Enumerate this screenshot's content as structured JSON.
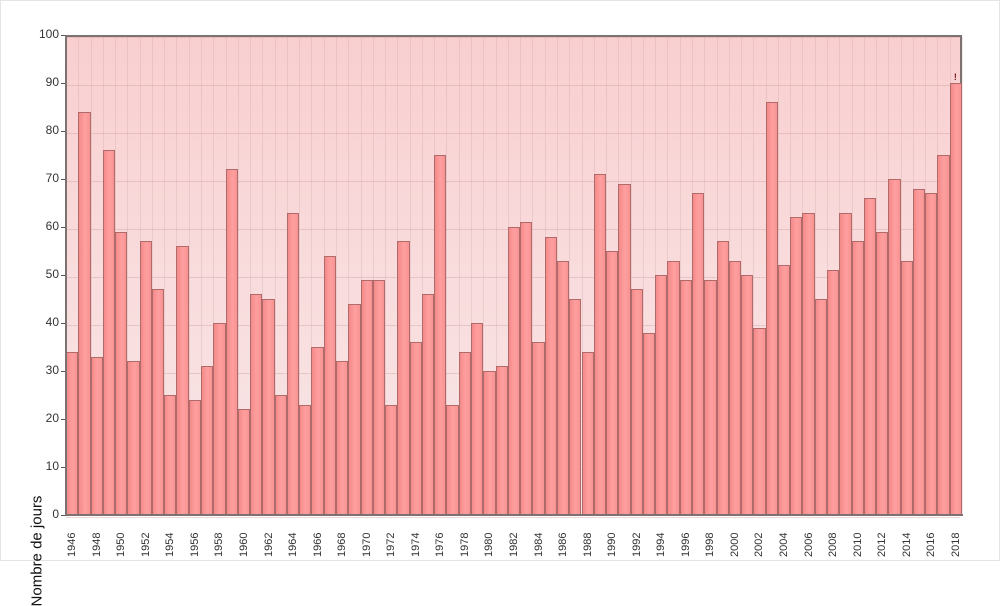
{
  "chart_data": {
    "type": "bar",
    "title": "",
    "xlabel": "",
    "ylabel": "Nombre de jours",
    "ylim": [
      0,
      100
    ],
    "yticks": [
      0,
      10,
      20,
      30,
      40,
      50,
      60,
      70,
      80,
      90,
      100
    ],
    "grid": true,
    "legend": null,
    "categories": [
      1946,
      1947,
      1948,
      1949,
      1950,
      1951,
      1952,
      1953,
      1954,
      1955,
      1956,
      1957,
      1958,
      1959,
      1960,
      1961,
      1962,
      1963,
      1964,
      1965,
      1966,
      1967,
      1968,
      1969,
      1970,
      1971,
      1972,
      1973,
      1974,
      1975,
      1976,
      1977,
      1978,
      1979,
      1980,
      1981,
      1982,
      1983,
      1984,
      1985,
      1986,
      1987,
      1988,
      1989,
      1990,
      1991,
      1992,
      1993,
      1994,
      1995,
      1996,
      1997,
      1998,
      1999,
      2000,
      2001,
      2002,
      2003,
      2004,
      2005,
      2006,
      2007,
      2008,
      2009,
      2010,
      2011,
      2012,
      2013,
      2014,
      2015,
      2016,
      2017,
      2018
    ],
    "xtick_labels": [
      "1946",
      "1948",
      "1950",
      "1952",
      "1954",
      "1956",
      "1958",
      "1960",
      "1962",
      "1964",
      "1966",
      "1968",
      "1970",
      "1972",
      "1974",
      "1976",
      "1978",
      "1980",
      "1982",
      "1984",
      "1986",
      "1988",
      "1990",
      "1992",
      "1994",
      "1996",
      "1998",
      "2000",
      "2002",
      "2004",
      "2006",
      "2008",
      "2010",
      "2012",
      "2014",
      "2016",
      "2018"
    ],
    "values": [
      34,
      84,
      33,
      76,
      59,
      32,
      57,
      47,
      25,
      56,
      24,
      31,
      40,
      72,
      22,
      46,
      45,
      25,
      63,
      23,
      35,
      54,
      32,
      44,
      49,
      49,
      23,
      57,
      36,
      46,
      75,
      23,
      34,
      40,
      30,
      31,
      60,
      61,
      36,
      58,
      53,
      45,
      34,
      71,
      55,
      69,
      47,
      38,
      50,
      53,
      49,
      67,
      49,
      57,
      53,
      50,
      39,
      86,
      52,
      62,
      63,
      45,
      51,
      63,
      57,
      66,
      59,
      70,
      53,
      68,
      67,
      75,
      90
    ],
    "annotations": [
      {
        "x": 2018,
        "text": "!",
        "note": "provisional marker above last bar"
      }
    ],
    "colors": {
      "bar_fill": "#ff9a9a",
      "bar_border": "#b06a6a",
      "plot_bg_top": "#f9cfd0",
      "plot_bg_bottom": "#f8e6e6",
      "axis": "#7c7272"
    }
  }
}
